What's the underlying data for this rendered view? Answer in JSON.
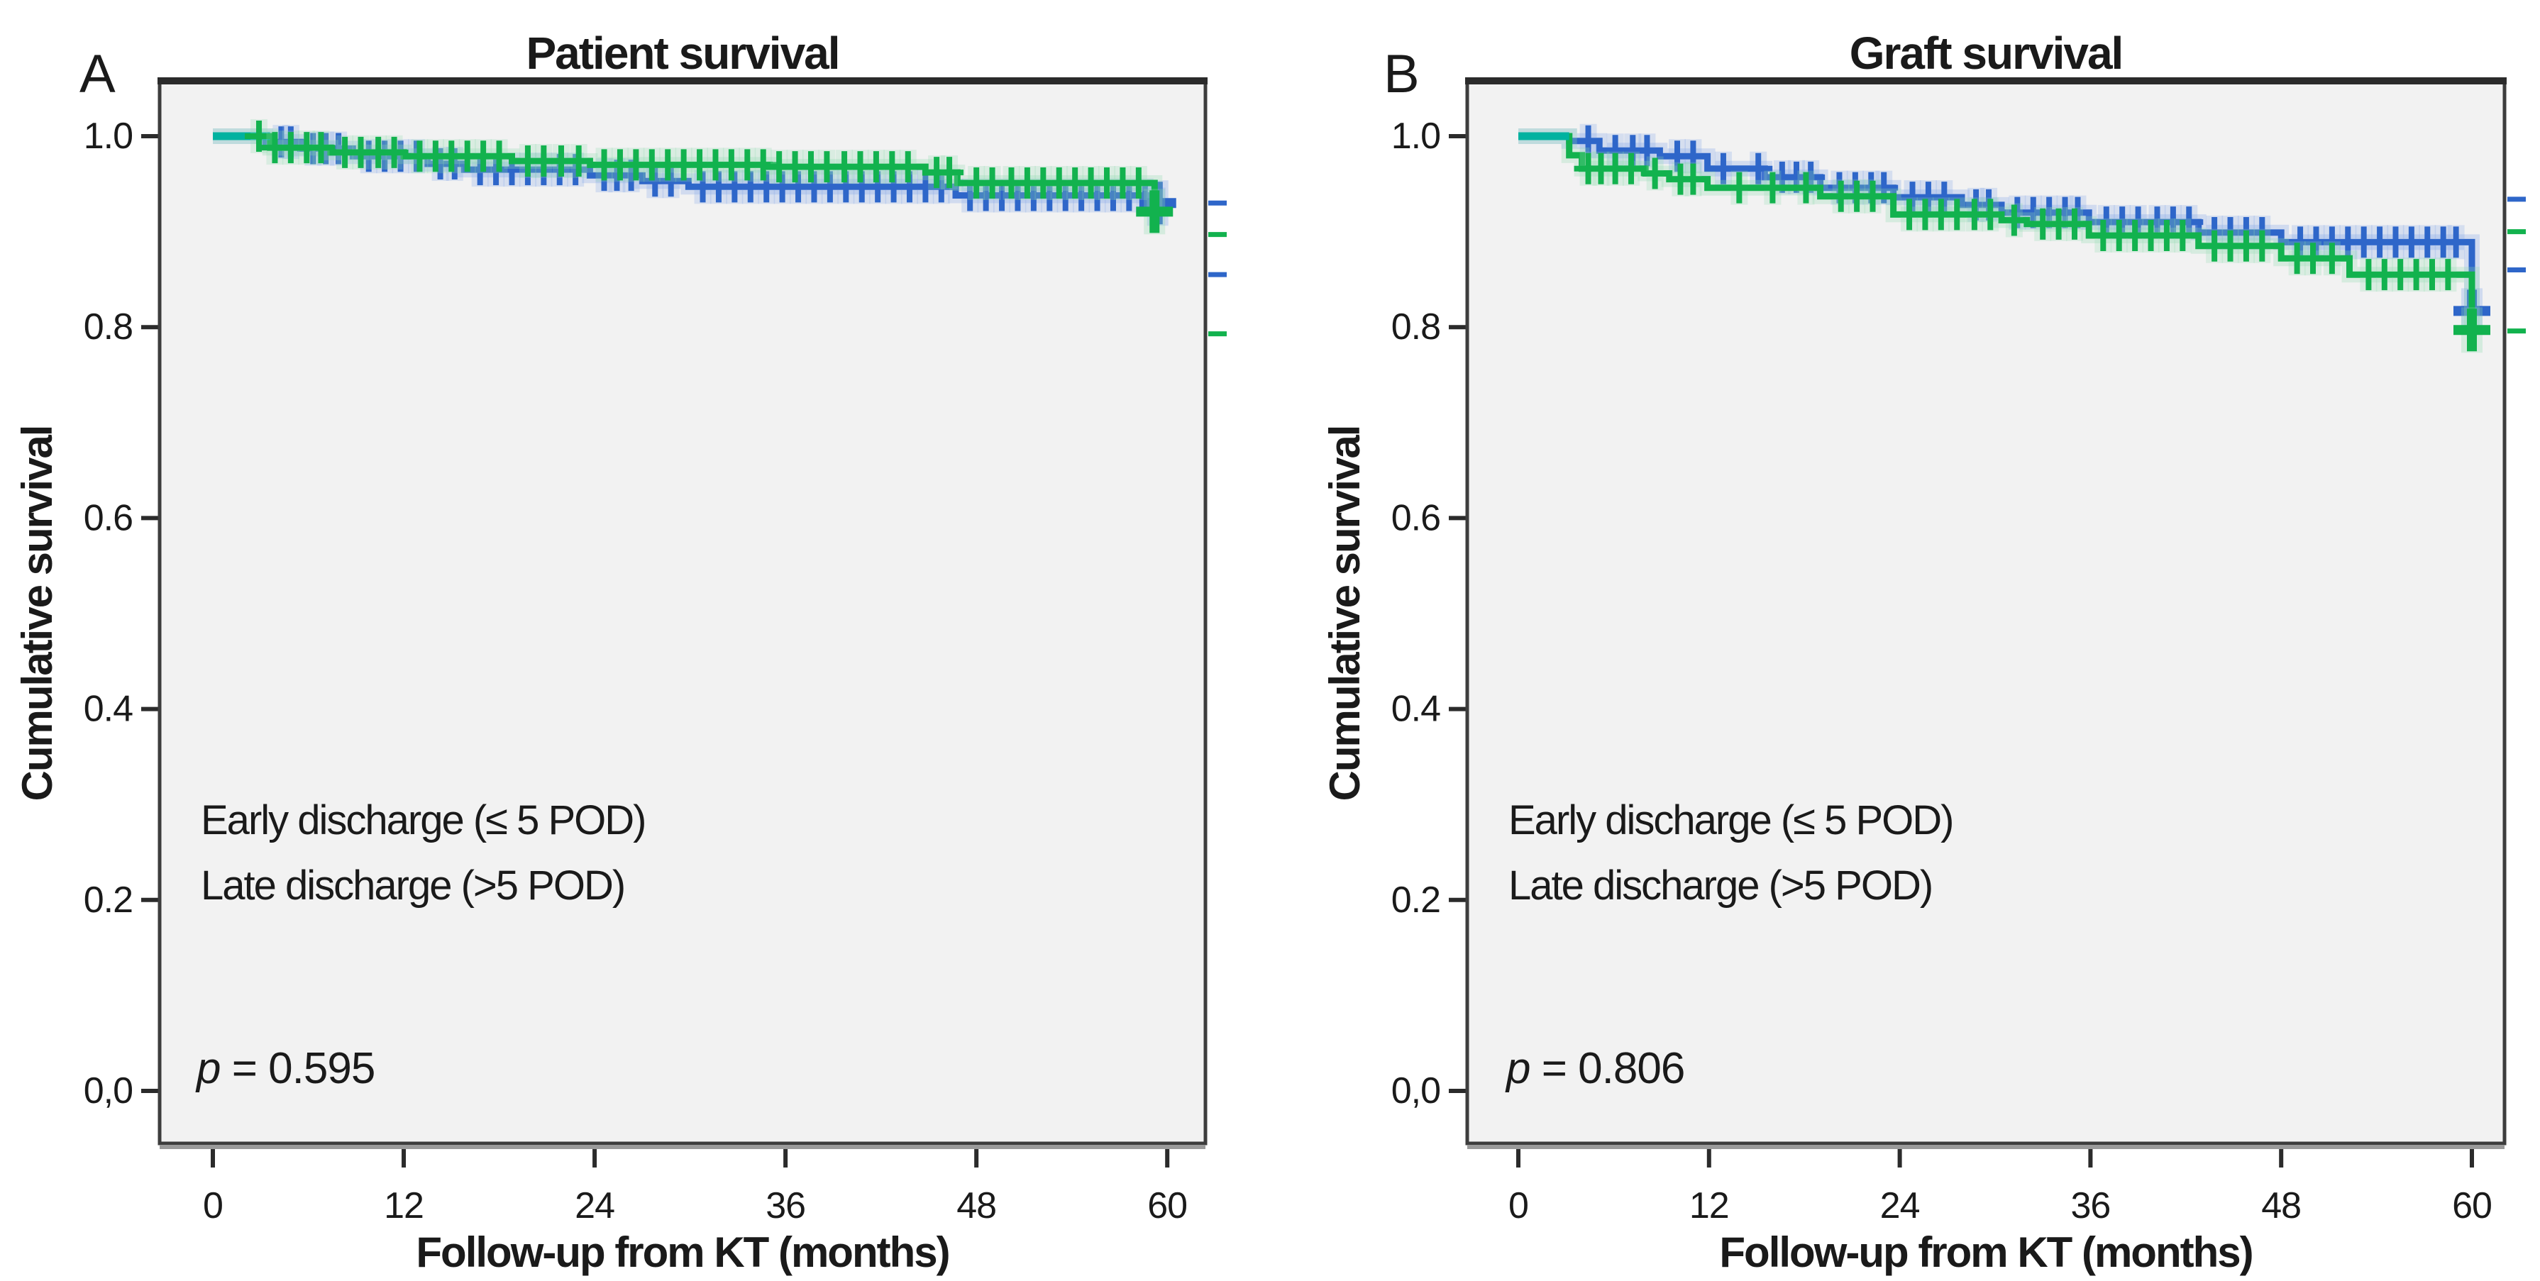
{
  "figure": {
    "colors": {
      "early": "#12b24e",
      "early_halo": "#8fdcb0",
      "early_start_teal": "#00b2a0",
      "late": "#2e66c9",
      "late_halo": "#7fa3e8",
      "legend_early": "#00a94f",
      "legend_late": "#17365d",
      "plot_bg": "#f2f2f2",
      "frame": "#3d3d3d",
      "text": "#1a1a1a"
    }
  },
  "chart_data": [
    {
      "type": "line",
      "kind": "kaplan-meier-step",
      "panel_label": "A",
      "title": "Patient survival",
      "xlabel": "Follow-up from KT (months)",
      "ylabel": "Cumulative survival",
      "xlim": [
        0,
        62.5
      ],
      "ylim": [
        0,
        1.05
      ],
      "grid": false,
      "legend_position": "inside-left-middle",
      "x_ticks": [
        0,
        12,
        24,
        36,
        48,
        60
      ],
      "y_ticks": [
        {
          "v": 1.0,
          "label": "1.0"
        },
        {
          "v": 0.8,
          "label": "0.8"
        },
        {
          "v": 0.6,
          "label": "0.6"
        },
        {
          "v": 0.4,
          "label": "0.4"
        },
        {
          "v": 0.2,
          "label": "0.2"
        },
        {
          "v": 0.0,
          "label": "0,0"
        }
      ],
      "p_text": {
        "symbol": "p",
        "rest": " = 0.595"
      },
      "legend": [
        {
          "series": "early",
          "label": "Early discharge (≤ 5 POD)"
        },
        {
          "series": "late",
          "label": "Late discharge (>5 POD)"
        }
      ],
      "series": [
        {
          "name": "late",
          "start_value": 1.0,
          "steps": [
            [
              3.3,
              0.994
            ],
            [
              5.5,
              0.987
            ],
            [
              8.8,
              0.979
            ],
            [
              13.5,
              0.971
            ],
            [
              15.8,
              0.965
            ],
            [
              23.7,
              0.959
            ],
            [
              27.0,
              0.953
            ],
            [
              29.9,
              0.947
            ],
            [
              46.7,
              0.938
            ],
            [
              59.4,
              0.93
            ]
          ],
          "censor_months": [
            4.3,
            4.9,
            6.3,
            7.1,
            7.9,
            9.8,
            10.8,
            11.8,
            12.8,
            14.3,
            15.2,
            16.8,
            17.8,
            18.8,
            19.8,
            20.8,
            21.8,
            22.8,
            24.6,
            25.4,
            26.3,
            27.8,
            28.8,
            30.8,
            31.8,
            32.8,
            33.8,
            34.8,
            35.8,
            36.8,
            37.8,
            38.8,
            39.8,
            40.8,
            41.8,
            42.8,
            43.8,
            44.8,
            45.8,
            47.6,
            48.6,
            49.6,
            50.6,
            51.6,
            52.6,
            53.6,
            54.6,
            55.6,
            56.6,
            57.6,
            58.6
          ],
          "end_marker": [
            59.4,
            0.93
          ]
        },
        {
          "name": "early",
          "start_value": 1.0,
          "steps": [
            [
              3.6,
              0.988
            ],
            [
              7.4,
              0.983
            ],
            [
              12.0,
              0.979
            ],
            [
              18.8,
              0.974
            ],
            [
              23.7,
              0.97
            ],
            [
              35.0,
              0.968
            ],
            [
              44.8,
              0.962
            ],
            [
              46.8,
              0.951
            ],
            [
              59.2,
              0.921
            ]
          ],
          "censor_months": [
            2.9,
            3.9,
            4.9,
            5.9,
            6.8,
            8.3,
            9.3,
            10.4,
            11.4,
            13,
            14,
            15,
            16,
            17,
            18,
            19.8,
            20.8,
            21.9,
            23,
            24.6,
            25.6,
            26.6,
            27.6,
            28.6,
            29.6,
            30.6,
            31.6,
            32.6,
            33.6,
            34.6,
            35.6,
            36.6,
            37.6,
            38.6,
            39.7,
            40.7,
            41.7,
            42.7,
            43.7,
            45.5,
            46.3,
            48,
            49,
            50.2,
            51.2,
            52.2,
            53.2,
            54.2,
            55.2,
            56.2,
            57.2,
            58.2
          ],
          "end_marker": [
            59.2,
            0.921
          ]
        }
      ],
      "right_edge_marks": [
        {
          "series": "late",
          "value": 0.93
        },
        {
          "series": "early",
          "value": 0.897
        },
        {
          "series": "late",
          "value": 0.855
        },
        {
          "series": "early",
          "value": 0.793
        }
      ]
    },
    {
      "type": "line",
      "kind": "kaplan-meier-step",
      "panel_label": "B",
      "title": "Graft survival",
      "xlabel": "Follow-up from KT (months)",
      "ylabel": "Cumulative survival",
      "xlim": [
        0,
        62.5
      ],
      "ylim": [
        0,
        1.05
      ],
      "grid": false,
      "legend_position": "inside-left-middle",
      "x_ticks": [
        0,
        12,
        24,
        36,
        48,
        60
      ],
      "y_ticks": [
        {
          "v": 1.0,
          "label": "1.0"
        },
        {
          "v": 0.8,
          "label": "0.8"
        },
        {
          "v": 0.6,
          "label": "0.6"
        },
        {
          "v": 0.4,
          "label": "0.4"
        },
        {
          "v": 0.2,
          "label": "0.2"
        },
        {
          "v": 0.0,
          "label": "0,0"
        }
      ],
      "p_text": {
        "symbol": "p",
        "rest": " = 0.806"
      },
      "legend": [
        {
          "series": "early",
          "label": "Early discharge (≤ 5 POD)"
        },
        {
          "series": "late",
          "label": "Late discharge (>5 POD)"
        }
      ],
      "series": [
        {
          "name": "late",
          "start_value": 1.0,
          "steps": [
            [
              3.2,
              0.995
            ],
            [
              5.1,
              0.985
            ],
            [
              8.9,
              0.979
            ],
            [
              11.9,
              0.966
            ],
            [
              15.5,
              0.957
            ],
            [
              19.0,
              0.946
            ],
            [
              23.6,
              0.936
            ],
            [
              27.9,
              0.928
            ],
            [
              30.4,
              0.92
            ],
            [
              35.9,
              0.91
            ],
            [
              42.8,
              0.899
            ],
            [
              48.0,
              0.889
            ],
            [
              60.0,
              0.817
            ]
          ],
          "censor_months": [
            4.4,
            6.1,
            7.2,
            8.1,
            10,
            11,
            12.9,
            15.1,
            16.6,
            17.5,
            18.4,
            20.2,
            21.2,
            22.2,
            23,
            24.8,
            25.8,
            26.8,
            28.8,
            29.6,
            31.4,
            32.4,
            33.4,
            34.4,
            35.2,
            37,
            38,
            39,
            40.2,
            41.2,
            42.2,
            43.8,
            44.8,
            45.8,
            46.8,
            49.2,
            50.2,
            51.2,
            52.2,
            53.2,
            54.2,
            55.2,
            56.2,
            57.2,
            58.2,
            59
          ],
          "end_marker": [
            60.0,
            0.817
          ]
        },
        {
          "name": "early",
          "start_value": 1.0,
          "steps": [
            [
              3.2,
              0.98
            ],
            [
              4.0,
              0.966
            ],
            [
              8.0,
              0.961
            ],
            [
              9.5,
              0.955
            ],
            [
              11.9,
              0.946
            ],
            [
              19.0,
              0.937
            ],
            [
              23.6,
              0.918
            ],
            [
              30.4,
              0.912
            ],
            [
              32.0,
              0.908
            ],
            [
              35.9,
              0.896
            ],
            [
              42.8,
              0.885
            ],
            [
              48.0,
              0.872
            ],
            [
              52.3,
              0.855
            ],
            [
              60.0,
              0.797
            ]
          ],
          "censor_months": [
            4.4,
            5.2,
            6.1,
            7.1,
            8.6,
            10.2,
            11,
            13.9,
            16,
            18.1,
            20.3,
            21.3,
            22.3,
            24.6,
            25.6,
            26.6,
            27.6,
            28.7,
            29.7,
            31.2,
            33,
            34,
            35,
            36.8,
            37.8,
            38.8,
            39.8,
            40.8,
            41.8,
            43.8,
            44.8,
            45.8,
            46.8,
            49,
            50,
            51.2,
            53.5,
            54.5,
            55.5,
            56.5,
            57.5,
            58.5
          ],
          "end_marker": [
            60.0,
            0.797
          ]
        }
      ],
      "right_edge_marks": [
        {
          "series": "late",
          "value": 0.934
        },
        {
          "series": "early",
          "value": 0.9
        },
        {
          "series": "late",
          "value": 0.86
        },
        {
          "series": "early",
          "value": 0.796
        }
      ]
    }
  ]
}
